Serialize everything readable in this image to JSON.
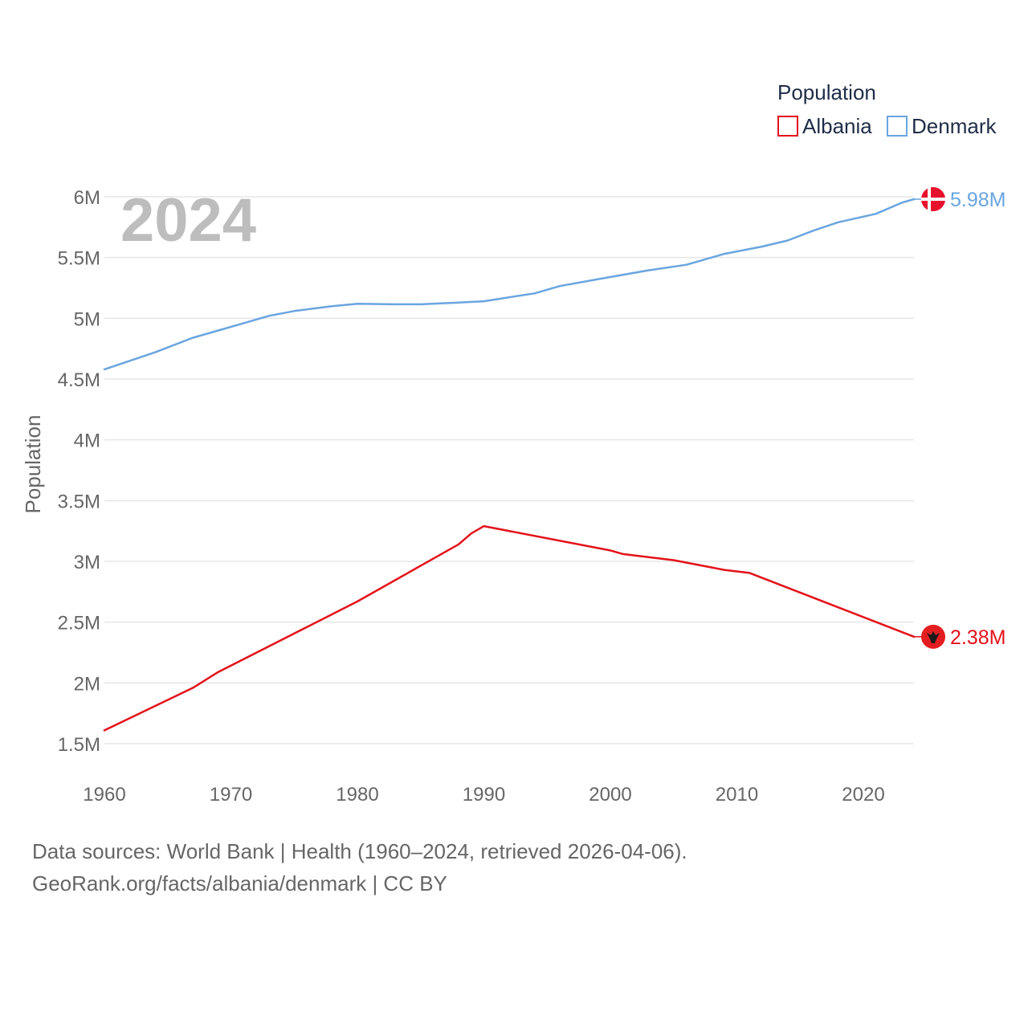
{
  "chart_data": {
    "type": "line",
    "year_label": "2024",
    "ylabel": "Population",
    "legend_title": "Population",
    "ylim": [
      1300000,
      6200000
    ],
    "xlim": [
      1960,
      2024
    ],
    "x_ticks": [
      1960,
      1970,
      1980,
      1990,
      2000,
      2010,
      2020
    ],
    "x_tick_labels": [
      "1960",
      "1970",
      "1980",
      "1990",
      "2000",
      "2010",
      "2020"
    ],
    "y_ticks": [
      1500000,
      2000000,
      2500000,
      3000000,
      3500000,
      4000000,
      4500000,
      5000000,
      5500000,
      6000000
    ],
    "y_tick_labels": [
      "1.5M",
      "2M",
      "2.5M",
      "3M",
      "3.5M",
      "4M",
      "4.5M",
      "5M",
      "5.5M",
      "6M"
    ],
    "series": [
      {
        "name": "Albania",
        "color": "#e3121a",
        "end_label": "2.38M",
        "flag_icon": "albania-flag-icon",
        "points": [
          [
            1960,
            1610000
          ],
          [
            1967,
            1960000
          ],
          [
            1969,
            2090000
          ],
          [
            1980,
            2670000
          ],
          [
            1988,
            3140000
          ],
          [
            1989,
            3230000
          ],
          [
            1990,
            3290000
          ],
          [
            2000,
            3090000
          ],
          [
            2001,
            3060000
          ],
          [
            2005,
            3010000
          ],
          [
            2009,
            2930000
          ],
          [
            2011,
            2905000
          ],
          [
            2024,
            2380000
          ]
        ]
      },
      {
        "name": "Denmark",
        "color": "#6aa5e0",
        "end_label": "5.98M",
        "flag_icon": "denmark-flag-icon",
        "points": [
          [
            1960,
            4580000
          ],
          [
            1964,
            4720000
          ],
          [
            1967,
            4840000
          ],
          [
            1969,
            4900000
          ],
          [
            1971,
            4960000
          ],
          [
            1973,
            5020000
          ],
          [
            1975,
            5060000
          ],
          [
            1978,
            5100000
          ],
          [
            1980,
            5120000
          ],
          [
            1983,
            5115000
          ],
          [
            1985,
            5115000
          ],
          [
            1988,
            5130000
          ],
          [
            1990,
            5140000
          ],
          [
            1994,
            5205000
          ],
          [
            1996,
            5265000
          ],
          [
            2000,
            5340000
          ],
          [
            2003,
            5395000
          ],
          [
            2006,
            5440000
          ],
          [
            2009,
            5530000
          ],
          [
            2012,
            5590000
          ],
          [
            2014,
            5640000
          ],
          [
            2016,
            5720000
          ],
          [
            2018,
            5790000
          ],
          [
            2021,
            5860000
          ],
          [
            2023,
            5950000
          ],
          [
            2024,
            5980000
          ]
        ]
      }
    ]
  },
  "footer": {
    "source_line": "Data sources: World Bank | Health (1960–2024, retrieved 2026-04-06).",
    "credit_line": "GeoRank.org/facts/albania/denmark | CC BY"
  }
}
